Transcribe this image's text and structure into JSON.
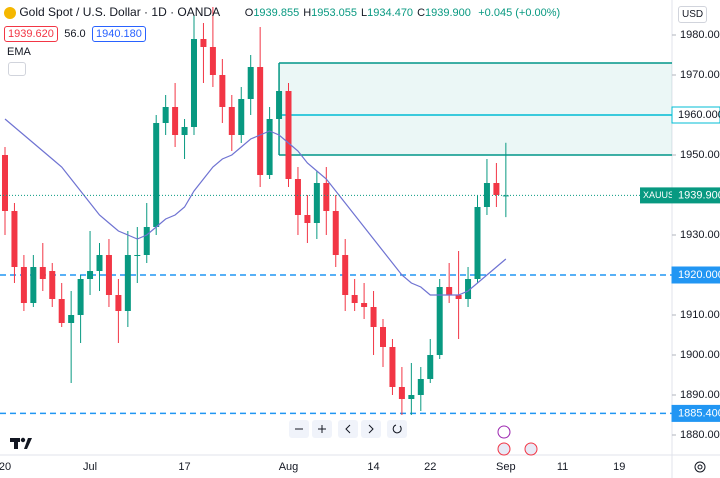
{
  "header": {
    "title": "Gold Spot / U.S. Dollar · 1D · OANDA",
    "ohlc": [
      {
        "key": "O",
        "value": "1939.855"
      },
      {
        "key": "H",
        "value": "1953.055"
      },
      {
        "key": "L",
        "value": "1934.470"
      },
      {
        "key": "C",
        "value": "1939.900"
      }
    ],
    "change": "+0.045 (+0.00%)",
    "bid": "1939.620",
    "spread": "56.0",
    "ask": "1940.180",
    "indicator": "EMA",
    "currency": "USD"
  },
  "chart_data": {
    "type": "candlestick",
    "categories": [
      "20",
      null,
      null,
      null,
      null,
      null,
      null,
      null,
      null,
      "Jul",
      null,
      null,
      null,
      null,
      null,
      null,
      null,
      null,
      null,
      "17",
      null,
      null,
      null,
      null,
      null,
      null,
      null,
      null,
      null,
      null,
      "Aug",
      null,
      null,
      null,
      null,
      null,
      null,
      null,
      null,
      "14",
      null,
      null,
      null,
      null,
      null,
      "22",
      null,
      null,
      null,
      null,
      null,
      null,
      null,
      "Sep",
      null,
      null,
      null,
      null,
      null,
      "11",
      null,
      null,
      null,
      null,
      null,
      "19",
      null,
      null,
      null,
      null
    ],
    "open": [
      1950,
      1936,
      1922,
      1913,
      1922,
      1921,
      1914,
      1908,
      1910,
      1919,
      1921,
      1925,
      1915,
      1911,
      1925,
      1925,
      1932,
      1958,
      1962,
      1955,
      1957,
      1979,
      1977,
      1970,
      1962,
      1955,
      1964,
      1972,
      1945,
      1959,
      1966,
      1944,
      1935,
      1933,
      1943,
      1936,
      1925,
      1915,
      1913,
      1912,
      1907,
      1902,
      1892,
      1889,
      1890,
      1894,
      1900,
      1917,
      1915,
      1914,
      1919,
      1937,
      1943,
      1939.855,
      null,
      null,
      null,
      null,
      null,
      null,
      null,
      null,
      null,
      null,
      null,
      null,
      null,
      null,
      null,
      null
    ],
    "high": [
      1952,
      1938,
      1925,
      1925,
      1928,
      1923,
      1918,
      1916,
      1920,
      1931,
      1928,
      1929,
      1919,
      1931,
      1932,
      1938,
      1960,
      1965,
      1968,
      1959,
      1985,
      1983,
      1987,
      1974,
      1965,
      1967,
      1975,
      1982,
      1962,
      1972,
      1968,
      1947,
      1940,
      1946,
      1947,
      1940,
      1929,
      1919,
      1918,
      1916,
      1909,
      1904,
      1897,
      1898,
      1897,
      1904,
      1919,
      1923,
      1926,
      1922,
      1940,
      1949,
      1948,
      1953.055,
      null,
      null,
      null,
      null,
      null,
      null,
      null,
      null,
      null,
      null,
      null,
      null,
      null,
      null,
      null,
      null
    ],
    "low": [
      1930,
      1918,
      1911,
      1912,
      1916,
      1912,
      1907,
      1893,
      1903,
      1915,
      1916,
      1912,
      1903,
      1907,
      1918,
      1923,
      1930,
      1955,
      1952,
      1949,
      1955,
      1968,
      1967,
      1958,
      1951,
      1953,
      1960,
      1942,
      1944,
      1955,
      1942,
      1930,
      1928,
      1929,
      1930,
      1922,
      1911,
      1911,
      1909,
      1900,
      1897,
      1890,
      1885,
      1885,
      1886,
      1893,
      1899,
      1913,
      1904,
      1912,
      1918,
      1935,
      1937,
      1934.47,
      null,
      null,
      null,
      null,
      null,
      null,
      null,
      null,
      null,
      null,
      null,
      null,
      null,
      null,
      null,
      null
    ],
    "close": [
      1936,
      1922,
      1913,
      1922,
      1919,
      1914,
      1908,
      1910,
      1919,
      1921,
      1925,
      1915,
      1911,
      1925,
      1925,
      1932,
      1958,
      1962,
      1955,
      1957,
      1979,
      1977,
      1970,
      1962,
      1955,
      1964,
      1972,
      1945,
      1959,
      1966,
      1944,
      1935,
      1933,
      1943,
      1936,
      1925,
      1915,
      1913,
      1912,
      1907,
      1902,
      1892,
      1889,
      1890,
      1894,
      1900,
      1917,
      1915,
      1914,
      1919,
      1937,
      1943,
      1940,
      1939.9,
      null,
      null,
      null,
      null,
      null,
      null,
      null,
      null,
      null,
      null,
      null,
      null,
      null,
      null,
      null,
      null
    ],
    "up_color": "#089981",
    "down_color": "#f23645",
    "series": [
      {
        "name": "EMA",
        "color": "#6f73d2",
        "values": [
          1959,
          1957,
          1955,
          1953,
          1951,
          1949,
          1947,
          1944,
          1941,
          1938,
          1935,
          1933,
          1931,
          1930,
          1929,
          1930,
          1932,
          1934,
          1935,
          1937,
          1941,
          1944,
          1947,
          1949,
          1950,
          1952,
          1954,
          1955,
          1956,
          1955,
          1953,
          1951,
          1948,
          1946,
          1944,
          1941,
          1938,
          1935,
          1932,
          1929,
          1926,
          1923,
          1920,
          1918,
          1917,
          1915,
          1915,
          1915,
          1915,
          1916,
          1918,
          1920,
          1922,
          1924,
          null,
          null,
          null,
          null,
          null,
          null,
          null,
          null,
          null,
          null,
          null,
          null,
          null,
          null,
          null,
          null
        ]
      }
    ],
    "ylim": [
      1875,
      1988.75
    ],
    "yticks": [
      {
        "value": 1880,
        "label": "1880.000"
      },
      {
        "value": 1890,
        "label": "1890.000"
      },
      {
        "value": 1900,
        "label": "1900.000"
      },
      {
        "value": 1910,
        "label": "1910.000"
      },
      {
        "value": 1920,
        "label": "1920.000"
      },
      {
        "value": 1930,
        "label": "1930.000"
      },
      {
        "value": 1940,
        "label": "1940.000"
      },
      {
        "value": 1950,
        "label": "1950.000"
      },
      {
        "value": 1960,
        "label": "1960.000"
      },
      {
        "value": 1970,
        "label": "1970.000"
      },
      {
        "value": 1980,
        "label": "1980.000"
      }
    ],
    "zone": {
      "low": 1950,
      "high": 1973,
      "start_index": 29,
      "color": "#009688"
    },
    "levels": [
      {
        "value": 1960,
        "label": "1960.000",
        "color": "#00bcd4",
        "dashed": false
      },
      {
        "value": 1920,
        "label": "1920.000",
        "color": "#2196f3",
        "dashed": true
      },
      {
        "value": 1885.4,
        "label": "1885.400",
        "color": "#2196f3",
        "dashed": true
      }
    ],
    "last_price": {
      "symbol": "XAUUSD",
      "value": 1939.9,
      "label": "1939.900",
      "color": "#089981"
    }
  }
}
